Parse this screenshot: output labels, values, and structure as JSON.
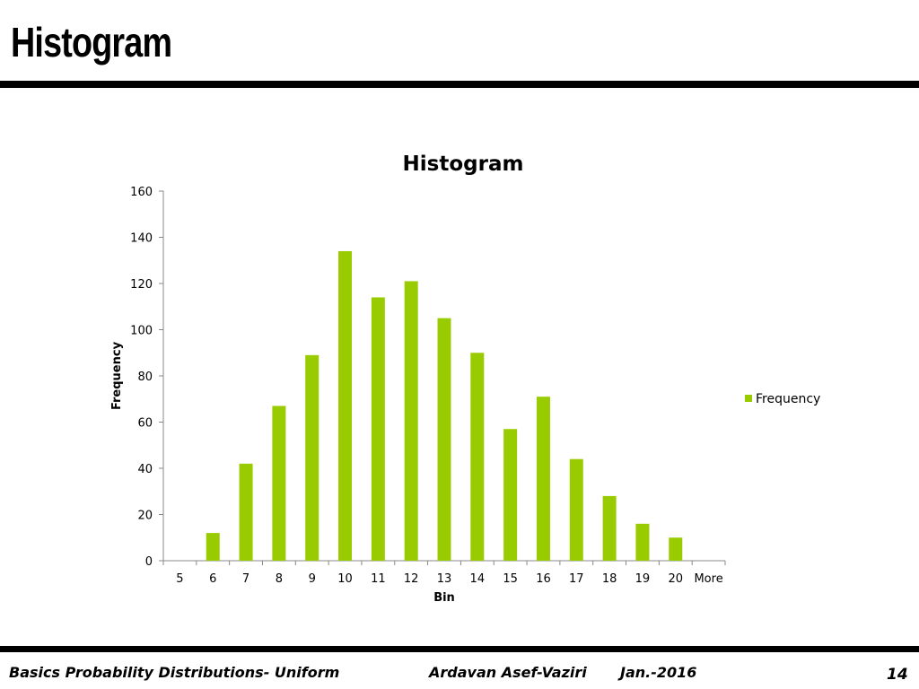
{
  "slide": {
    "title": "Histogram"
  },
  "footer": {
    "left": "Basics Probability Distributions- Uniform",
    "author": "Ardavan Asef-Vaziri",
    "date": "Jan.-2016",
    "page": "14"
  },
  "chart_data": {
    "type": "bar",
    "title": "Histogram",
    "xlabel": "Bin",
    "ylabel": "Frequency",
    "categories": [
      "5",
      "6",
      "7",
      "8",
      "9",
      "10",
      "11",
      "12",
      "13",
      "14",
      "15",
      "16",
      "17",
      "18",
      "19",
      "20",
      "More"
    ],
    "series": [
      {
        "name": "Frequency",
        "values": [
          0,
          12,
          42,
          67,
          89,
          134,
          114,
          121,
          105,
          90,
          57,
          71,
          44,
          28,
          16,
          10,
          0
        ],
        "color": "#99cc00"
      }
    ],
    "ylim": [
      0,
      160
    ],
    "yticks": [
      0,
      20,
      40,
      60,
      80,
      100,
      120,
      140,
      160
    ],
    "grid": false,
    "legend_position": "right"
  }
}
